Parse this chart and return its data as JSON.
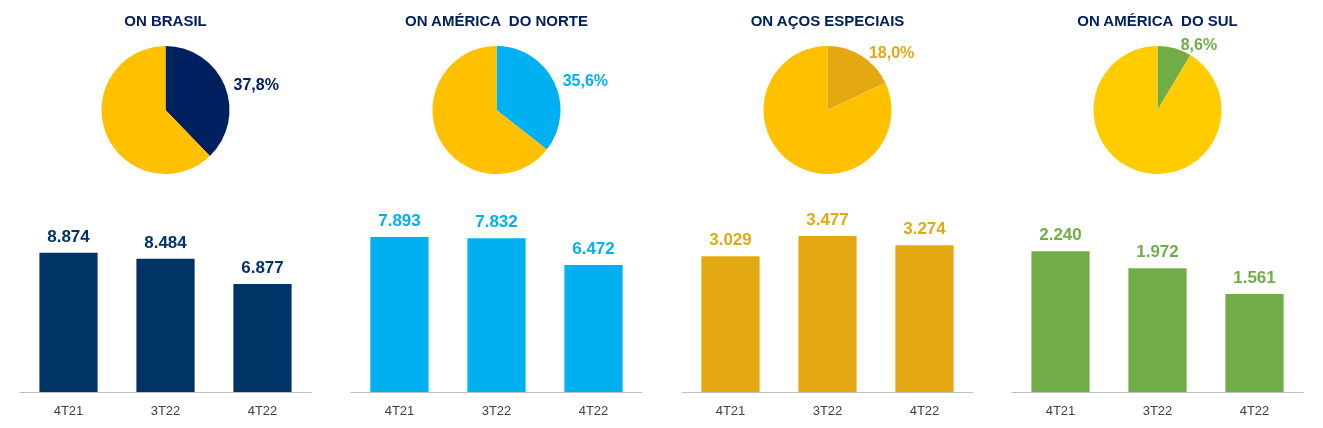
{
  "chart_data": [
    {
      "type": "pie",
      "title": "ON BRASIL",
      "categories": [
        null,
        null
      ],
      "values": [
        37.8,
        62.2
      ],
      "colors": [
        "#002060",
        "#ffc000"
      ],
      "value_labels": [
        "37,8%",
        null
      ]
    },
    {
      "type": "bar",
      "categories": [
        "4T21",
        "3T22",
        "4T22"
      ],
      "values": [
        8874,
        8484,
        6877
      ],
      "color": "#003366",
      "value_labels": [
        "8.874",
        "8.484",
        "6.877"
      ]
    },
    {
      "type": "pie",
      "title": "ON AMÉRICA  DO NORTE",
      "categories": [
        null,
        null
      ],
      "values": [
        35.6,
        64.4
      ],
      "colors": [
        "#00b0f0",
        "#ffc000"
      ],
      "value_labels": [
        "35,6%",
        null
      ]
    },
    {
      "type": "bar",
      "categories": [
        "4T21",
        "3T22",
        "4T22"
      ],
      "values": [
        7893,
        7832,
        6472
      ],
      "color": "#00b0f0",
      "value_labels": [
        "7.893",
        "7.832",
        "6.472"
      ]
    },
    {
      "type": "pie",
      "title": "ON AÇOS ESPECIAIS",
      "categories": [
        null,
        null
      ],
      "values": [
        18.0,
        82.0
      ],
      "colors": [
        "#e3a812",
        "#ffc000"
      ],
      "value_labels": [
        "18,0%",
        null
      ]
    },
    {
      "type": "bar",
      "categories": [
        "4T21",
        "3T22",
        "4T22"
      ],
      "values": [
        3029,
        3477,
        3274
      ],
      "color": "#e3a812",
      "value_labels": [
        "3.029",
        "3.477",
        "3.274"
      ]
    },
    {
      "type": "pie",
      "title": "ON AMÉRICA  DO SUL",
      "categories": [
        null,
        null
      ],
      "values": [
        8.6,
        91.4
      ],
      "colors": [
        "#70ad47",
        "#ffcc00"
      ],
      "value_labels": [
        "8,6%",
        null
      ]
    },
    {
      "type": "bar",
      "categories": [
        "4T21",
        "3T22",
        "4T22"
      ],
      "values": [
        2240,
        1972,
        1561
      ],
      "color": "#70ad47",
      "value_labels": [
        "2.240",
        "1.972",
        "1.561"
      ]
    }
  ]
}
